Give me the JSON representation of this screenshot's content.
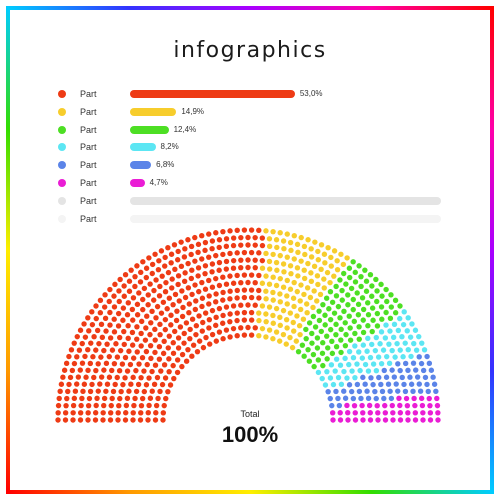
{
  "title": "infographics",
  "colors": {
    "frame": [
      "#ff0000",
      "#ff9900",
      "#ffee00",
      "#33dd00",
      "#00ccff",
      "#3333ff",
      "#aa00ff",
      "#ff00aa",
      "#ff0000"
    ],
    "empty": "#e6e6e6"
  },
  "chart_data": {
    "type": "bar",
    "title": "infographics",
    "categories": [
      "Part",
      "Part",
      "Part",
      "Part",
      "Part",
      "Part",
      "Part",
      "Part"
    ],
    "values": [
      53.0,
      14.9,
      12.4,
      8.2,
      6.8,
      4.7,
      null,
      null
    ],
    "value_labels": [
      "53,0%",
      "14,9%",
      "12,4%",
      "8,2%",
      "6,8%",
      "4,7%",
      "",
      ""
    ],
    "colors": [
      "#ee3b15",
      "#f7cd2c",
      "#4ddf24",
      "#5ce6f3",
      "#5b84e8",
      "#ea1dd5",
      "#e4e4e4",
      "#f4f4f4"
    ],
    "xlim": [
      0,
      100
    ]
  },
  "semicircle": {
    "type": "pie",
    "total_label": "Total",
    "total_value": "100%"
  }
}
